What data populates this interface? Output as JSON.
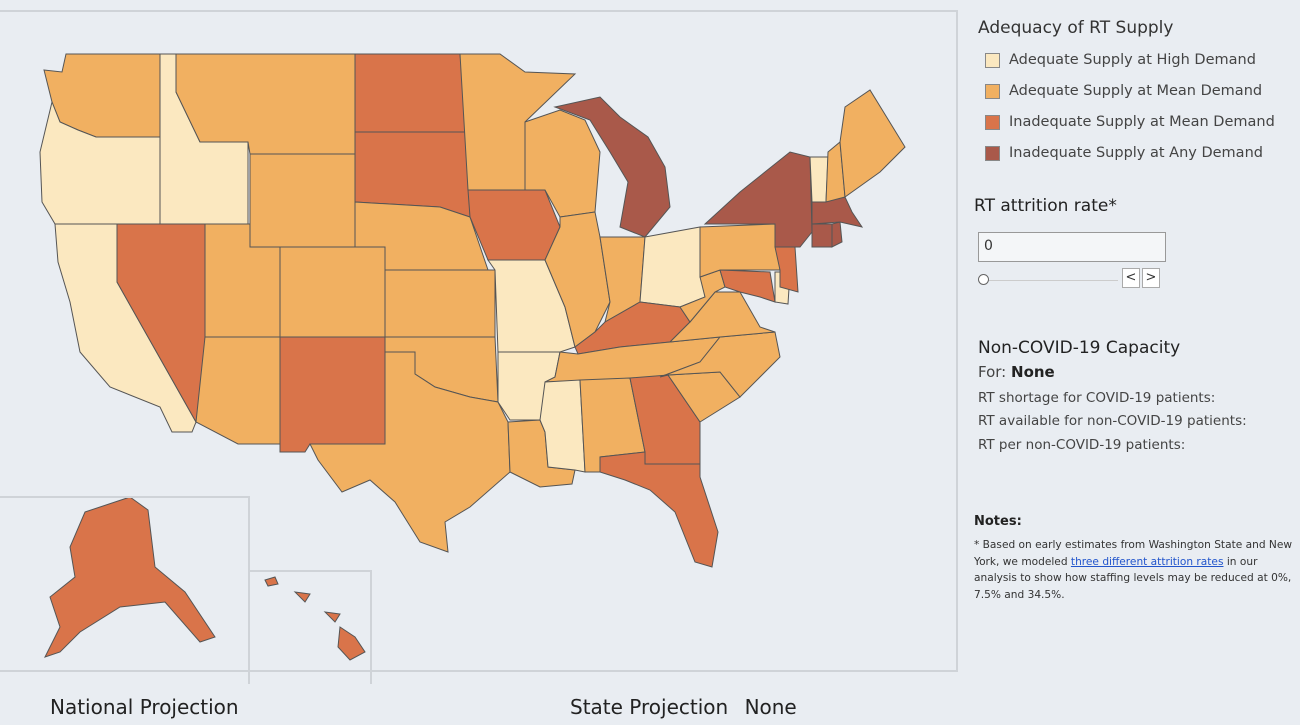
{
  "legend": {
    "title": "Adequacy of RT Supply",
    "items": [
      {
        "label": "Adequate Supply at High Demand",
        "color": "#fbe8c0"
      },
      {
        "label": "Adequate Supply at Mean Demand",
        "color": "#f1b061"
      },
      {
        "label": "Inadequate Supply at Mean Demand",
        "color": "#d9744a"
      },
      {
        "label": "Inadequate Supply at Any Demand",
        "color": "#a9594a"
      }
    ]
  },
  "attrition": {
    "title": "RT attrition rate*",
    "value": "0",
    "prev_icon": "chevron-left-icon",
    "next_icon": "chevron-right-icon",
    "prev_glyph": "<",
    "next_glyph": ">"
  },
  "capacity": {
    "title": "Non-COVID-19 Capacity",
    "for_label": "For:",
    "for_value": "None",
    "shortage_label": "RT shortage for COVID-19 patients:",
    "available_label": "RT available for non-COVID-19 patients:",
    "per_label": "RT per non-COVID-19 patients:"
  },
  "notes": {
    "title": "Notes:",
    "text_before": "* Based on early estimates from Washington State and New York, we modeled ",
    "link_text": "three different attrition rates",
    "text_after": " in our analysis to show how staffing levels may be reduced at 0%, 7.5% and 34.5%."
  },
  "bottom": {
    "national_title": "National Projection",
    "state_title": "State Projection",
    "state_value": "None"
  },
  "map": {
    "states": [
      {
        "id": "WA",
        "cat": 1
      },
      {
        "id": "OR",
        "cat": 0
      },
      {
        "id": "CA",
        "cat": 0
      },
      {
        "id": "ID",
        "cat": 0
      },
      {
        "id": "NV",
        "cat": 2
      },
      {
        "id": "MT",
        "cat": 1
      },
      {
        "id": "WY",
        "cat": 1
      },
      {
        "id": "UT",
        "cat": 1
      },
      {
        "id": "AZ",
        "cat": 1
      },
      {
        "id": "CO",
        "cat": 1
      },
      {
        "id": "NM",
        "cat": 2
      },
      {
        "id": "ND",
        "cat": 2
      },
      {
        "id": "SD",
        "cat": 2
      },
      {
        "id": "NE",
        "cat": 1
      },
      {
        "id": "KS",
        "cat": 1
      },
      {
        "id": "OK",
        "cat": 1
      },
      {
        "id": "TX",
        "cat": 1
      },
      {
        "id": "MN",
        "cat": 1
      },
      {
        "id": "IA",
        "cat": 2
      },
      {
        "id": "MO",
        "cat": 0
      },
      {
        "id": "AR",
        "cat": 0
      },
      {
        "id": "LA",
        "cat": 1
      },
      {
        "id": "WI",
        "cat": 1
      },
      {
        "id": "IL",
        "cat": 1
      },
      {
        "id": "MI",
        "cat": 3
      },
      {
        "id": "IN",
        "cat": 1
      },
      {
        "id": "OH",
        "cat": 0
      },
      {
        "id": "KY",
        "cat": 2
      },
      {
        "id": "TN",
        "cat": 1
      },
      {
        "id": "MS",
        "cat": 0
      },
      {
        "id": "AL",
        "cat": 1
      },
      {
        "id": "GA",
        "cat": 2
      },
      {
        "id": "FL",
        "cat": 2
      },
      {
        "id": "SC",
        "cat": 1
      },
      {
        "id": "NC",
        "cat": 1
      },
      {
        "id": "VA",
        "cat": 1
      },
      {
        "id": "WV",
        "cat": 1
      },
      {
        "id": "MD",
        "cat": 2
      },
      {
        "id": "DE",
        "cat": 0
      },
      {
        "id": "PA",
        "cat": 1
      },
      {
        "id": "NJ",
        "cat": 2
      },
      {
        "id": "NY",
        "cat": 3
      },
      {
        "id": "CT",
        "cat": 3
      },
      {
        "id": "RI",
        "cat": 3
      },
      {
        "id": "MA",
        "cat": 3
      },
      {
        "id": "VT",
        "cat": 0
      },
      {
        "id": "NH",
        "cat": 1
      },
      {
        "id": "ME",
        "cat": 1
      },
      {
        "id": "AK",
        "cat": 2
      },
      {
        "id": "HI",
        "cat": 2
      }
    ]
  }
}
